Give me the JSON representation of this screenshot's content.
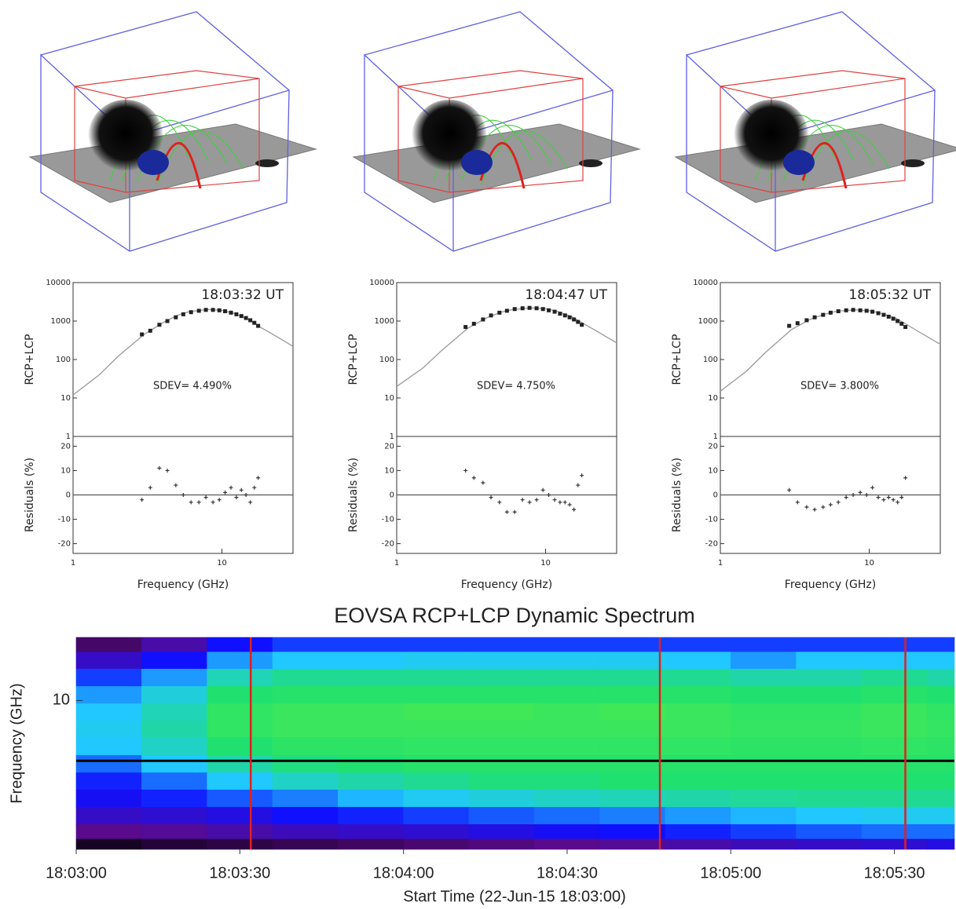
{
  "chart_data": [
    {
      "type": "line",
      "annotations": [
        "18:03:32 UT",
        "SDEV=  4.490%"
      ],
      "xlabel": "Frequency (GHz)",
      "xlim": [
        1,
        30
      ],
      "xticks": [
        1,
        10
      ],
      "log_x": true,
      "top": {
        "ylabel": "RCP+LCP",
        "ylim": [
          1,
          10000
        ],
        "yticks": [
          1,
          10,
          100,
          1000,
          10000
        ],
        "log_y": true,
        "series": [
          {
            "x": [
              1,
              1.5,
              2,
              3,
              4,
              5,
              6,
              8,
              10,
              12,
              15,
              18,
              22,
              30
            ],
            "values": [
              12,
              40,
              120,
              450,
              900,
              1400,
              1750,
              2000,
              1900,
              1600,
              1100,
              700,
              450,
              220
            ],
            "color": "#999999",
            "marker": "none"
          },
          {
            "x": [
              2.9,
              3.3,
              3.8,
              4.3,
              4.9,
              5.5,
              6.2,
              7,
              7.8,
              8.7,
              9.6,
              10.5,
              11.5,
              12.5,
              13.5,
              14.5,
              15.5,
              16.5,
              17.5
            ],
            "values": [
              450,
              560,
              800,
              1000,
              1250,
              1500,
              1700,
              1850,
              1950,
              1950,
              1900,
              1800,
              1650,
              1500,
              1350,
              1200,
              1050,
              900,
              750
            ],
            "color": "#222222",
            "marker": "square"
          }
        ]
      },
      "bottom": {
        "ylabel": "Residuals (%)",
        "ylim": [
          -24,
          24
        ],
        "yticks": [
          -20,
          -10,
          0,
          10,
          20
        ],
        "reference_line": 0,
        "series": [
          {
            "x": [
              2.9,
              3.3,
              3.8,
              4.3,
              4.9,
              5.5,
              6.2,
              7,
              7.8,
              8.7,
              9.6,
              10.5,
              11.5,
              12.5,
              13.5,
              14.5,
              15.5,
              16.5,
              17.5
            ],
            "values": [
              -2,
              3,
              11,
              10,
              4,
              0,
              -3,
              -3,
              -1,
              -3,
              -2,
              1,
              3,
              -1,
              2,
              0,
              -3,
              3,
              7
            ],
            "color": "#333333",
            "marker": "plus"
          }
        ]
      }
    },
    {
      "type": "line",
      "annotations": [
        "18:04:47 UT",
        "SDEV=  4.750%"
      ],
      "xlabel": "Frequency (GHz)",
      "xlim": [
        1,
        30
      ],
      "xticks": [
        1,
        10
      ],
      "log_x": true,
      "top": {
        "ylabel": "RCP+LCP",
        "ylim": [
          1,
          10000
        ],
        "yticks": [
          1,
          10,
          100,
          1000,
          10000
        ],
        "log_y": true,
        "series": [
          {
            "x": [
              1,
              1.5,
              2,
              3,
              4,
              5,
              6,
              8,
              10,
              12,
              15,
              18,
              22,
              30
            ],
            "values": [
              20,
              60,
              170,
              650,
              1200,
              1700,
              2000,
              2200,
              2100,
              1800,
              1300,
              850,
              550,
              270
            ],
            "color": "#999999",
            "marker": "none"
          },
          {
            "x": [
              2.9,
              3.3,
              3.8,
              4.3,
              4.9,
              5.5,
              6.2,
              7,
              7.8,
              8.7,
              9.6,
              10.5,
              11.5,
              12.5,
              13.5,
              14.5,
              15.5,
              16.5,
              17.5
            ],
            "values": [
              700,
              850,
              1100,
              1400,
              1650,
              1850,
              2050,
              2150,
              2200,
              2150,
              2050,
              1900,
              1750,
              1550,
              1400,
              1250,
              1100,
              950,
              800
            ],
            "color": "#222222",
            "marker": "square"
          }
        ]
      },
      "bottom": {
        "ylabel": "Residuals (%)",
        "ylim": [
          -24,
          24
        ],
        "yticks": [
          -20,
          -10,
          0,
          10,
          20
        ],
        "reference_line": 0,
        "series": [
          {
            "x": [
              2.9,
              3.3,
              3.8,
              4.3,
              4.9,
              5.5,
              6.2,
              7,
              7.8,
              8.7,
              9.6,
              10.5,
              11.5,
              12.5,
              13.5,
              14.5,
              15.5,
              16.5,
              17.5
            ],
            "values": [
              10,
              7,
              5,
              -1,
              -3,
              -7,
              -7,
              -2,
              -3,
              -2,
              2,
              0,
              -2,
              -3,
              -3,
              -4,
              -6,
              4,
              8
            ],
            "color": "#333333",
            "marker": "plus"
          }
        ]
      }
    },
    {
      "type": "line",
      "annotations": [
        "18:05:32 UT",
        "SDEV=  3.800%"
      ],
      "xlabel": "Frequency (GHz)",
      "xlim": [
        1,
        30
      ],
      "xticks": [
        1,
        10
      ],
      "log_x": true,
      "top": {
        "ylabel": "RCP+LCP",
        "ylim": [
          1,
          10000
        ],
        "yticks": [
          1,
          10,
          100,
          1000,
          10000
        ],
        "log_y": true,
        "series": [
          {
            "x": [
              1,
              1.5,
              2,
              3,
              4,
              5,
              6,
              8,
              10,
              12,
              15,
              18,
              22,
              30
            ],
            "values": [
              15,
              50,
              150,
              600,
              1100,
              1500,
              1800,
              1950,
              1850,
              1600,
              1200,
              800,
              500,
              250
            ],
            "color": "#999999",
            "marker": "none"
          },
          {
            "x": [
              2.9,
              3.3,
              3.8,
              4.3,
              4.9,
              5.5,
              6.2,
              7,
              7.8,
              8.7,
              9.6,
              10.5,
              11.5,
              12.5,
              13.5,
              14.5,
              15.5,
              16.5,
              17.5
            ],
            "values": [
              750,
              880,
              1050,
              1250,
              1450,
              1650,
              1800,
              1900,
              1950,
              1900,
              1850,
              1750,
              1600,
              1450,
              1300,
              1150,
              1000,
              850,
              700
            ],
            "color": "#222222",
            "marker": "square"
          }
        ]
      },
      "bottom": {
        "ylabel": "Residuals (%)",
        "ylim": [
          -24,
          24
        ],
        "yticks": [
          -20,
          -10,
          0,
          10,
          20
        ],
        "reference_line": 0,
        "series": [
          {
            "x": [
              2.9,
              3.3,
              3.8,
              4.3,
              4.9,
              5.5,
              6.2,
              7,
              7.8,
              8.7,
              9.6,
              10.5,
              11.5,
              12.5,
              13.5,
              14.5,
              15.5,
              16.5,
              17.5
            ],
            "values": [
              2,
              -3,
              -5,
              -6,
              -5,
              -4,
              -3,
              -1,
              0,
              1,
              0,
              3,
              -1,
              -2,
              -1,
              -2,
              -3,
              -1,
              7
            ],
            "color": "#333333",
            "marker": "plus"
          }
        ]
      }
    },
    {
      "type": "heatmap",
      "title": "EOVSA RCP+LCP Dynamic Spectrum",
      "xlabel": "Start Time (22-Jun-15 18:03:00)",
      "ylabel": "Frequency (GHz)",
      "xlim": [
        0,
        161
      ],
      "xticks": [
        {
          "value": 0,
          "label": "18:03:00"
        },
        {
          "value": 30,
          "label": "18:03:30"
        },
        {
          "value": 60,
          "label": "18:04:00"
        },
        {
          "value": 90,
          "label": "18:04:30"
        },
        {
          "value": 120,
          "label": "18:05:00"
        },
        {
          "value": 150,
          "label": "18:05:30"
        }
      ],
      "ylim": [
        2.5,
        18
      ],
      "yticks": [
        10
      ],
      "log_y": true,
      "x_edges": [
        0,
        12,
        24,
        36,
        48,
        60,
        72,
        84,
        96,
        108,
        120,
        132,
        144,
        156,
        161
      ],
      "y_edges": [
        18,
        15.7,
        13.4,
        11.4,
        9.7,
        8.3,
        7.1,
        6,
        5.1,
        4.35,
        3.7,
        3.15,
        2.75,
        2.5
      ],
      "zlim": [
        0,
        1
      ],
      "colormap": [
        "#000000",
        "#5a0a8c",
        "#1010ff",
        "#20c8ff",
        "#20e070",
        "#60f040"
      ],
      "values": [
        [
          0.15,
          0.25,
          0.4,
          0.45,
          0.45,
          0.45,
          0.45,
          0.45,
          0.45,
          0.45,
          0.45,
          0.45,
          0.45,
          0.45
        ],
        [
          0.3,
          0.4,
          0.55,
          0.6,
          0.6,
          0.62,
          0.62,
          0.62,
          0.62,
          0.6,
          0.55,
          0.6,
          0.6,
          0.6
        ],
        [
          0.45,
          0.55,
          0.7,
          0.75,
          0.75,
          0.75,
          0.75,
          0.75,
          0.75,
          0.75,
          0.72,
          0.72,
          0.75,
          0.72
        ],
        [
          0.55,
          0.65,
          0.8,
          0.82,
          0.82,
          0.82,
          0.82,
          0.82,
          0.82,
          0.82,
          0.8,
          0.8,
          0.82,
          0.8
        ],
        [
          0.6,
          0.7,
          0.85,
          0.88,
          0.88,
          0.9,
          0.9,
          0.88,
          0.9,
          0.88,
          0.85,
          0.85,
          0.88,
          0.85
        ],
        [
          0.62,
          0.72,
          0.85,
          0.88,
          0.88,
          0.88,
          0.88,
          0.88,
          0.88,
          0.88,
          0.86,
          0.86,
          0.88,
          0.86
        ],
        [
          0.6,
          0.68,
          0.8,
          0.84,
          0.84,
          0.85,
          0.85,
          0.85,
          0.85,
          0.85,
          0.84,
          0.84,
          0.85,
          0.84
        ],
        [
          0.5,
          0.6,
          0.72,
          0.78,
          0.8,
          0.82,
          0.82,
          0.82,
          0.82,
          0.82,
          0.82,
          0.82,
          0.82,
          0.82
        ],
        [
          0.42,
          0.5,
          0.6,
          0.68,
          0.72,
          0.75,
          0.78,
          0.78,
          0.8,
          0.8,
          0.8,
          0.8,
          0.8,
          0.8
        ],
        [
          0.38,
          0.42,
          0.48,
          0.52,
          0.58,
          0.62,
          0.65,
          0.68,
          0.7,
          0.72,
          0.74,
          0.75,
          0.75,
          0.75
        ],
        [
          0.3,
          0.32,
          0.35,
          0.4,
          0.42,
          0.45,
          0.48,
          0.5,
          0.52,
          0.55,
          0.58,
          0.6,
          0.62,
          0.62
        ],
        [
          0.2,
          0.22,
          0.25,
          0.28,
          0.3,
          0.32,
          0.35,
          0.38,
          0.4,
          0.42,
          0.45,
          0.48,
          0.5,
          0.5
        ],
        [
          0.05,
          0.08,
          0.1,
          0.12,
          0.14,
          0.16,
          0.18,
          0.2,
          0.22,
          0.25,
          0.28,
          0.3,
          0.32,
          0.35
        ]
      ],
      "markers": {
        "x": [
          32,
          107,
          152
        ],
        "color": "#e02020"
      },
      "reference_line": {
        "y": 5.7,
        "color": "#000000"
      }
    }
  ]
}
